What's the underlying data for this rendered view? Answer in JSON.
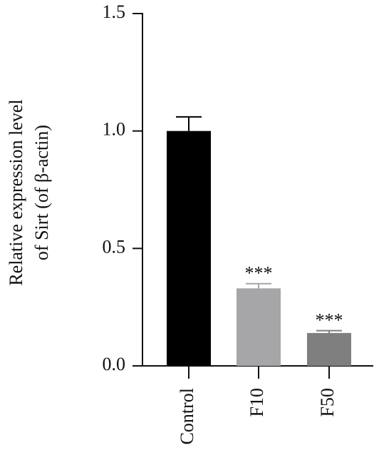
{
  "chart_data": {
    "type": "bar",
    "ylabel": [
      "Relative expression level",
      "of Sirt (of β-actin)"
    ],
    "categories": [
      "Control",
      "F10",
      "F50"
    ],
    "values": [
      1.0,
      0.33,
      0.14
    ],
    "errors": [
      0.06,
      0.02,
      0.01
    ],
    "significance": [
      null,
      "***",
      "***"
    ],
    "colors": [
      "#000000",
      "#a6a6a8",
      "#7f7f7f"
    ],
    "ylim": [
      0,
      1.5
    ],
    "yticks": [
      {
        "value": 0,
        "label": "0.0"
      },
      0.5,
      {
        "value": 1,
        "label": "1.0"
      },
      1.5
    ]
  }
}
